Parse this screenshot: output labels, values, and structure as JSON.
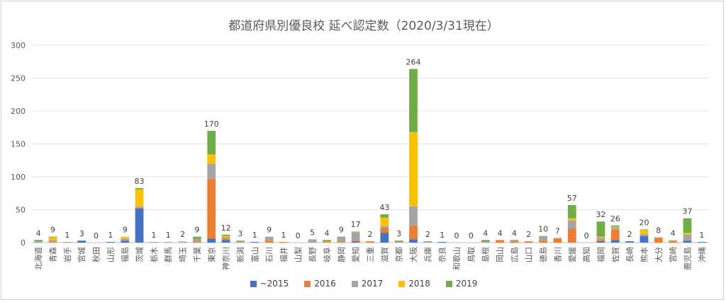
{
  "chart_data": {
    "type": "bar",
    "stacked": true,
    "title": "都道府県別優良校 延べ認定数（2020/3/31現在）",
    "xlabel": "",
    "ylabel": "",
    "ylim": [
      0,
      300
    ],
    "yticks": [
      0,
      50,
      100,
      150,
      200,
      250,
      300
    ],
    "grid": true,
    "legend_position": "bottom",
    "categories": [
      "北海道",
      "青森",
      "岩手",
      "宮城",
      "秋田",
      "山形",
      "福島",
      "茨城",
      "栃木",
      "群馬",
      "埼玉",
      "千葉",
      "東京",
      "神奈川",
      "新潟",
      "富山",
      "石川",
      "福井",
      "山梨",
      "長野",
      "岐阜",
      "静岡",
      "愛知",
      "三重",
      "滋賀",
      "京都",
      "大阪",
      "兵庫",
      "奈良",
      "和歌山",
      "鳥取",
      "島根",
      "岡山",
      "広島",
      "山口",
      "徳島",
      "香川",
      "愛媛",
      "高知",
      "福岡",
      "佐賀",
      "長崎",
      "熊本",
      "大分",
      "宮崎",
      "鹿児島",
      "沖縄"
    ],
    "totals": [
      4,
      9,
      1,
      3,
      0,
      1,
      9,
      83,
      1,
      1,
      2,
      9,
      170,
      12,
      3,
      1,
      9,
      1,
      0,
      5,
      4,
      9,
      17,
      2,
      43,
      3,
      264,
      2,
      1,
      0,
      0,
      4,
      4,
      4,
      2,
      10,
      7,
      57,
      0,
      32,
      26,
      2,
      20,
      8,
      4,
      37,
      1
    ],
    "series": [
      {
        "name": "~2015",
        "color": "#4472C4",
        "values": [
          0,
          0,
          0,
          3,
          0,
          1,
          3,
          52,
          0,
          0,
          0,
          0,
          6,
          4,
          0,
          1,
          0,
          0,
          0,
          0,
          0,
          0,
          2,
          0,
          15,
          0,
          5,
          0,
          1,
          0,
          0,
          0,
          0,
          0,
          0,
          0,
          0,
          0,
          0,
          2,
          4,
          2,
          10,
          0,
          0,
          3,
          1
        ]
      },
      {
        "name": "2016",
        "color": "#ED7D31",
        "values": [
          0,
          1,
          0,
          0,
          0,
          0,
          1,
          1,
          0,
          0,
          0,
          1,
          91,
          2,
          0,
          0,
          3,
          1,
          0,
          0,
          1,
          1,
          1,
          2,
          7,
          0,
          21,
          0,
          0,
          0,
          0,
          0,
          4,
          2,
          2,
          3,
          6,
          21,
          0,
          2,
          15,
          0,
          0,
          7,
          2,
          1,
          0
        ]
      },
      {
        "name": "2017",
        "color": "#A5A5A5",
        "values": [
          2,
          3,
          1,
          0,
          0,
          0,
          2,
          2,
          1,
          1,
          1,
          5,
          23,
          2,
          2,
          0,
          6,
          0,
          0,
          5,
          1,
          7,
          13,
          0,
          3,
          1,
          29,
          1,
          0,
          0,
          0,
          1,
          0,
          1,
          0,
          6,
          1,
          13,
          0,
          3,
          3,
          0,
          3,
          1,
          1,
          8,
          0
        ]
      },
      {
        "name": "2018",
        "color": "#FFC000",
        "values": [
          0,
          4,
          0,
          0,
          0,
          0,
          3,
          26,
          0,
          0,
          1,
          0,
          14,
          2,
          0,
          0,
          0,
          0,
          0,
          0,
          0,
          0,
          1,
          0,
          13,
          0,
          113,
          0,
          0,
          0,
          0,
          0,
          0,
          0,
          0,
          0,
          0,
          3,
          0,
          2,
          2,
          0,
          6,
          0,
          1,
          3,
          0
        ]
      },
      {
        "name": "2019",
        "color": "#70AD47",
        "values": [
          2,
          1,
          0,
          0,
          0,
          0,
          0,
          2,
          0,
          0,
          0,
          3,
          36,
          2,
          1,
          0,
          0,
          0,
          0,
          0,
          2,
          1,
          0,
          0,
          5,
          2,
          96,
          1,
          0,
          0,
          0,
          3,
          0,
          1,
          0,
          1,
          0,
          20,
          0,
          23,
          2,
          0,
          1,
          0,
          0,
          22,
          0
        ]
      }
    ]
  }
}
